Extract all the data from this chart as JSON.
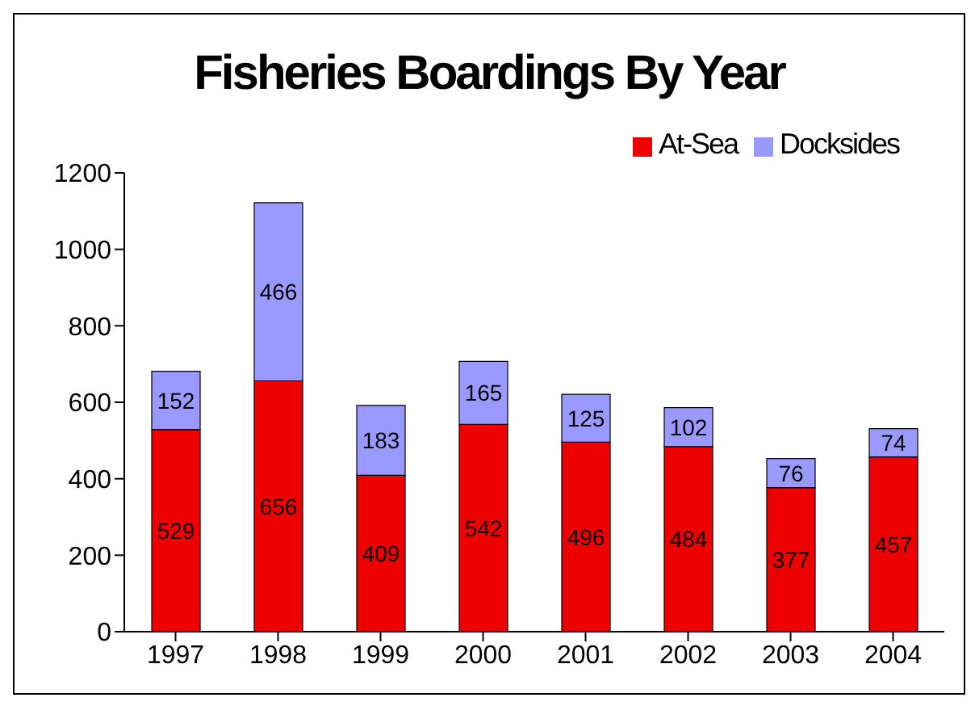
{
  "chart_data": {
    "type": "bar",
    "title": "Fisheries Boardings By Year",
    "categories": [
      "1997",
      "1998",
      "1999",
      "2000",
      "2001",
      "2002",
      "2003",
      "2004"
    ],
    "series": [
      {
        "name": "At-Sea",
        "color": "#ee0000",
        "values": [
          529,
          656,
          409,
          542,
          496,
          484,
          377,
          457
        ]
      },
      {
        "name": "Docksides",
        "color": "#9999ff",
        "values": [
          152,
          466,
          183,
          165,
          125,
          102,
          76,
          74
        ]
      }
    ],
    "stacked": true,
    "ylim": [
      0,
      1200
    ],
    "yticks": [
      0,
      200,
      400,
      600,
      800,
      1000,
      1200
    ],
    "grid": false,
    "legend": "top right",
    "data_labels": true
  }
}
